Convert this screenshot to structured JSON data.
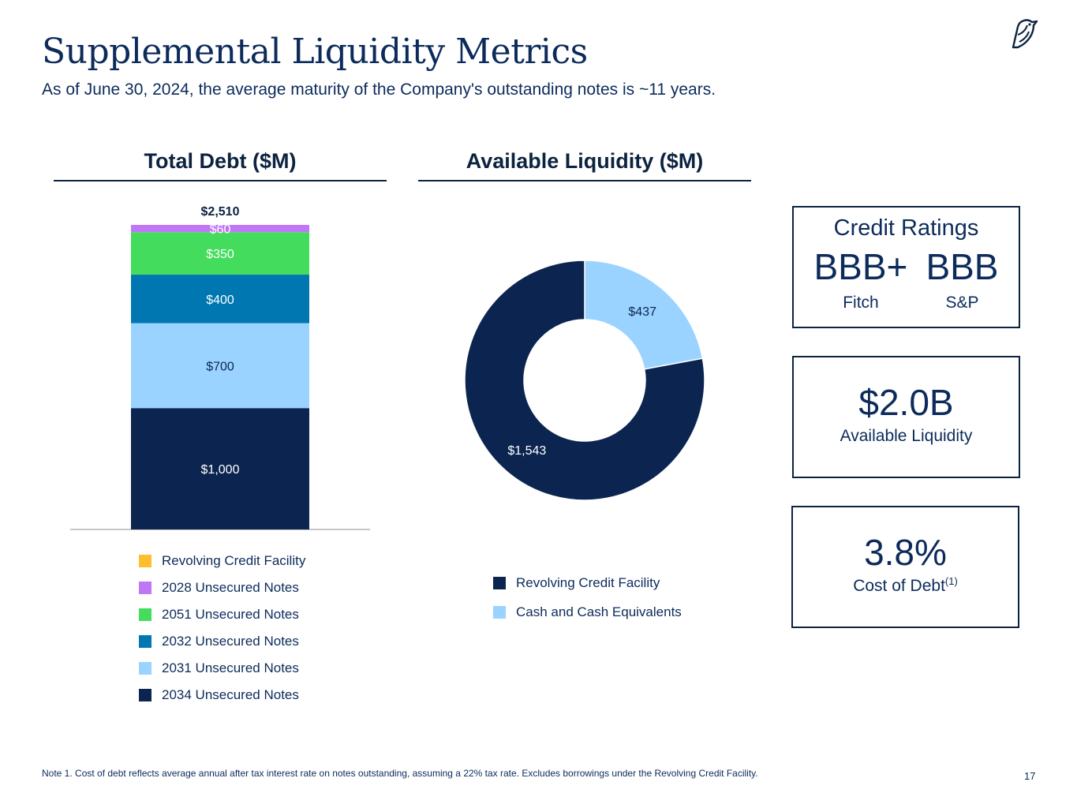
{
  "page": {
    "title": "Supplemental Liquidity Metrics",
    "subtitle": "As of June 30, 2024, the average maturity of the Company's outstanding notes is ~11 years.",
    "footnote": "Note 1. Cost of debt reflects average annual after tax interest rate on notes outstanding, assuming a 22% tax rate. Excludes borrowings under the Revolving Credit Facility.",
    "page_number": "17",
    "logo_icon": "bird-icon"
  },
  "chart_data": [
    {
      "type": "bar",
      "stacked": true,
      "title": "Total Debt ($M)",
      "categories": [
        "Total Debt"
      ],
      "total_label": "$2,510",
      "ylim": [
        0,
        2510
      ],
      "series": [
        {
          "name": "2034 Unsecured Notes",
          "values": [
            1000
          ],
          "label": "$1,000",
          "color": "#0c2550",
          "label_color": "#ffffff"
        },
        {
          "name": "2031 Unsecured Notes",
          "values": [
            700
          ],
          "label": "$700",
          "color": "#9ad3ff",
          "label_color": "#0c2550"
        },
        {
          "name": "2032 Unsecured Notes",
          "values": [
            400
          ],
          "label": "$400",
          "color": "#0077b0",
          "label_color": "#ffffff"
        },
        {
          "name": "2051 Unsecured Notes",
          "values": [
            350
          ],
          "label": "$350",
          "color": "#44dc5c",
          "label_color": "#ffffff"
        },
        {
          "name": "2028 Unsecured Notes",
          "values": [
            60
          ],
          "label": "$60",
          "color": "#bf77f6",
          "label_color": "#ffffff"
        },
        {
          "name": "Revolving Credit Facility",
          "values": [
            0
          ],
          "label": "",
          "color": "#fbbf2e",
          "label_color": "#ffffff"
        }
      ],
      "legend": [
        {
          "name": "Revolving Credit Facility",
          "color": "#fbbf2e"
        },
        {
          "name": "2028 Unsecured Notes",
          "color": "#bf77f6"
        },
        {
          "name": "2051 Unsecured Notes",
          "color": "#44dc5c"
        },
        {
          "name": "2032 Unsecured Notes",
          "color": "#0077b0"
        },
        {
          "name": "2031 Unsecured Notes",
          "color": "#9ad3ff"
        },
        {
          "name": "2034 Unsecured Notes",
          "color": "#0c2550"
        }
      ]
    },
    {
      "type": "pie",
      "donut": true,
      "title": "Available Liquidity ($M)",
      "slices": [
        {
          "name": "Cash and Cash Equivalents",
          "value": 437,
          "label": "$437",
          "color": "#9ad3ff",
          "label_color": "#0c2550"
        },
        {
          "name": "Revolving Credit Facility",
          "value": 1543,
          "label": "$1,543",
          "color": "#0c2550",
          "label_color": "#ffffff"
        }
      ],
      "legend": [
        {
          "name": "Revolving Credit Facility",
          "color": "#0c2550"
        },
        {
          "name": "Cash and Cash Equivalents",
          "color": "#9ad3ff"
        }
      ]
    }
  ],
  "credit_ratings": {
    "title": "Credit Ratings",
    "ratings": [
      {
        "value": "BBB+",
        "agency": "Fitch"
      },
      {
        "value": "BBB",
        "agency": "S&P"
      }
    ]
  },
  "liquidity_card": {
    "value": "$2.0B",
    "label": "Available Liquidity"
  },
  "cost_card": {
    "value": "3.8%",
    "label": "Cost of Debt",
    "footnote_ref": "(1)"
  }
}
